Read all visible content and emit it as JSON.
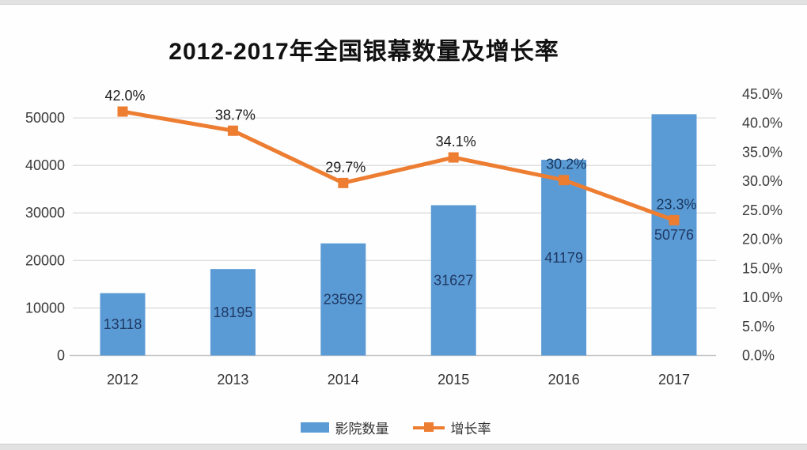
{
  "chart_data": {
    "type": "combo",
    "title": "2012-2017年全国银幕数量及增长率",
    "categories": [
      "2012",
      "2013",
      "2014",
      "2015",
      "2016",
      "2017"
    ],
    "series": [
      {
        "name": "影院数量",
        "type": "bar",
        "axis": "left",
        "values": [
          13118,
          18195,
          23592,
          31627,
          41179,
          50776
        ],
        "color": "#5B9BD5",
        "label_color": "#1F3864",
        "label_position": "inside-center"
      },
      {
        "name": "增长率",
        "type": "line",
        "axis": "right",
        "values": [
          42.0,
          38.7,
          29.7,
          34.1,
          30.2,
          23.3
        ],
        "value_suffix": "%",
        "color": "#ED7D31",
        "marker": "square",
        "label_colors": [
          "#1a1a1a",
          "#1a1a1a",
          "#1a1a1a",
          "#1a1a1a",
          "#17365d",
          "#17365d"
        ],
        "label_position": "above"
      }
    ],
    "left_axis": {
      "min": 0,
      "max": 55000,
      "tick_step": 10000,
      "tick_labels": [
        "0",
        "10000",
        "20000",
        "30000",
        "40000",
        "50000"
      ]
    },
    "right_axis": {
      "min": 0,
      "max": 45,
      "tick_step": 5,
      "tick_labels": [
        "0.0%",
        "5.0%",
        "10.0%",
        "15.0%",
        "20.0%",
        "25.0%",
        "30.0%",
        "35.0%",
        "40.0%",
        "45.0%"
      ]
    },
    "grid": true,
    "legend_position": "bottom",
    "colors": {
      "grid": "#D9D9D9",
      "axis_line": "#C6C6C6",
      "tick_text": "#3a3a3a",
      "category_text": "#333333"
    }
  }
}
